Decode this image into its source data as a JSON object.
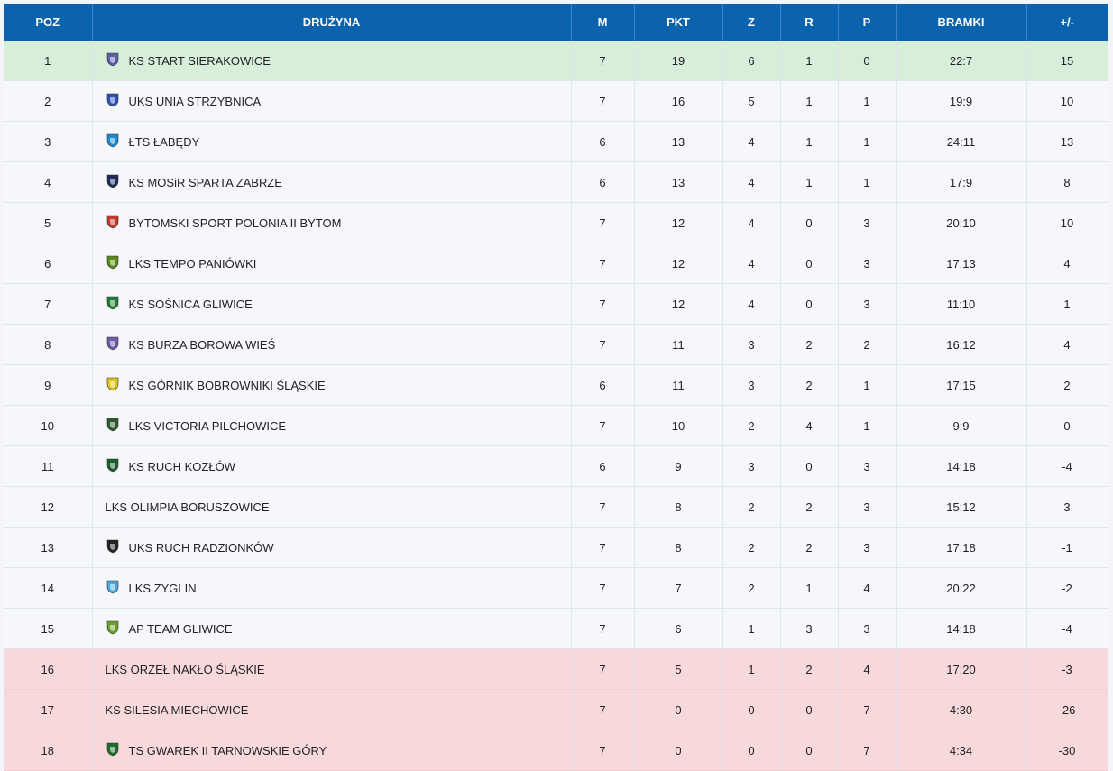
{
  "header": {
    "poz": "POZ",
    "druzyna": "DRUŻYNA",
    "m": "M",
    "pkt": "PKT",
    "z": "Z",
    "r": "R",
    "p": "P",
    "bramki": "BRAMKI",
    "diff": "+/-"
  },
  "rows": [
    {
      "poz": "1",
      "team": "KS START SIERAKOWICE",
      "m": "7",
      "pkt": "19",
      "z": "6",
      "r": "1",
      "p": "0",
      "bramki": "22:7",
      "diff": "15",
      "crest": "crest-eagle-icon",
      "crest_color": "#5a5fa8"
    },
    {
      "poz": "2",
      "team": "UKS UNIA STRZYBNICA",
      "m": "7",
      "pkt": "16",
      "z": "5",
      "r": "1",
      "p": "1",
      "bramki": "19:9",
      "diff": "10",
      "crest": "crest-shield-stripes-icon",
      "crest_color": "#2b4fb0"
    },
    {
      "poz": "3",
      "team": "ŁTS ŁABĘDY",
      "m": "6",
      "pkt": "13",
      "z": "4",
      "r": "1",
      "p": "1",
      "bramki": "24:11",
      "diff": "13",
      "crest": "crest-circle-icon",
      "crest_color": "#1d8ad0"
    },
    {
      "poz": "4",
      "team": "KS MOSiR SPARTA ZABRZE",
      "m": "6",
      "pkt": "13",
      "z": "4",
      "r": "1",
      "p": "1",
      "bramki": "17:9",
      "diff": "8",
      "crest": "crest-dark-circle-icon",
      "crest_color": "#1c2a5c"
    },
    {
      "poz": "5",
      "team": "BYTOMSKI SPORT POLONIA II BYTOM",
      "m": "7",
      "pkt": "12",
      "z": "4",
      "r": "0",
      "p": "3",
      "bramki": "20:10",
      "diff": "10",
      "crest": "crest-shield-red-icon",
      "crest_color": "#c0392b"
    },
    {
      "poz": "6",
      "team": "LKS TEMPO PANIÓWKI",
      "m": "7",
      "pkt": "12",
      "z": "4",
      "r": "0",
      "p": "3",
      "bramki": "17:13",
      "diff": "4",
      "crest": "crest-shield-green-icon",
      "crest_color": "#5a8a1a"
    },
    {
      "poz": "7",
      "team": "KS SOŚNICA GLIWICE",
      "m": "7",
      "pkt": "12",
      "z": "4",
      "r": "0",
      "p": "3",
      "bramki": "11:10",
      "diff": "1",
      "crest": "crest-diagonal-icon",
      "crest_color": "#1e7d32"
    },
    {
      "poz": "8",
      "team": "KS BURZA BOROWA WIEŚ",
      "m": "7",
      "pkt": "11",
      "z": "3",
      "r": "2",
      "p": "2",
      "bramki": "16:12",
      "diff": "4",
      "crest": "crest-shield-purple-icon",
      "crest_color": "#6c5aa8"
    },
    {
      "poz": "9",
      "team": "KS GÓRNIK BOBROWNIKI ŚLĄSKIE",
      "m": "6",
      "pkt": "11",
      "z": "3",
      "r": "2",
      "p": "1",
      "bramki": "17:15",
      "diff": "2",
      "crest": "crest-square-yellow-icon",
      "crest_color": "#e0c21a"
    },
    {
      "poz": "10",
      "team": "LKS VICTORIA PILCHOWICE",
      "m": "7",
      "pkt": "10",
      "z": "2",
      "r": "4",
      "p": "1",
      "bramki": "9:9",
      "diff": "0",
      "crest": "crest-shield-darkgreen-icon",
      "crest_color": "#2c5a2a"
    },
    {
      "poz": "11",
      "team": "KS RUCH KOZŁÓW",
      "m": "6",
      "pkt": "9",
      "z": "3",
      "r": "0",
      "p": "3",
      "bramki": "14:18",
      "diff": "-4",
      "crest": "crest-square-green-icon",
      "crest_color": "#1a5e2a"
    },
    {
      "poz": "12",
      "team": "LKS OLIMPIA BORUSZOWICE",
      "m": "7",
      "pkt": "8",
      "z": "2",
      "r": "2",
      "p": "3",
      "bramki": "15:12",
      "diff": "3",
      "crest": "",
      "crest_color": ""
    },
    {
      "poz": "13",
      "team": "UKS RUCH RADZIONKÓW",
      "m": "7",
      "pkt": "8",
      "z": "2",
      "r": "2",
      "p": "3",
      "bramki": "17:18",
      "diff": "-1",
      "crest": "crest-shield-black-yellow-icon",
      "crest_color": "#222222"
    },
    {
      "poz": "14",
      "team": "LKS ŻYGLIN",
      "m": "7",
      "pkt": "7",
      "z": "2",
      "r": "1",
      "p": "4",
      "bramki": "20:22",
      "diff": "-2",
      "crest": "crest-shield-lightblue-icon",
      "crest_color": "#4aa8e0"
    },
    {
      "poz": "15",
      "team": "AP TEAM GLIWICE",
      "m": "7",
      "pkt": "6",
      "z": "1",
      "r": "3",
      "p": "3",
      "bramki": "14:18",
      "diff": "-4",
      "crest": "crest-ball-icon",
      "crest_color": "#6aa02a"
    },
    {
      "poz": "16",
      "team": "LKS ORZEŁ NAKŁO ŚLĄSKIE",
      "m": "7",
      "pkt": "5",
      "z": "1",
      "r": "2",
      "p": "4",
      "bramki": "17:20",
      "diff": "-3",
      "crest": "",
      "crest_color": ""
    },
    {
      "poz": "17",
      "team": "KS SILESIA MIECHOWICE",
      "m": "7",
      "pkt": "0",
      "z": "0",
      "r": "0",
      "p": "7",
      "bramki": "4:30",
      "diff": "-26",
      "crest": "",
      "crest_color": ""
    },
    {
      "poz": "18",
      "team": "TS GWAREK II TARNOWSKIE GÓRY",
      "m": "7",
      "pkt": "0",
      "z": "0",
      "r": "0",
      "p": "7",
      "bramki": "4:34",
      "diff": "-30",
      "crest": "crest-shield-green-yellow-icon",
      "crest_color": "#1f6b2a"
    }
  ],
  "colors": {
    "header_bg": "#0b62ad",
    "promotion_bg": "#d7eedb",
    "relegation_bg": "#f7d9dc",
    "row_bg": "#f6f7fb"
  }
}
